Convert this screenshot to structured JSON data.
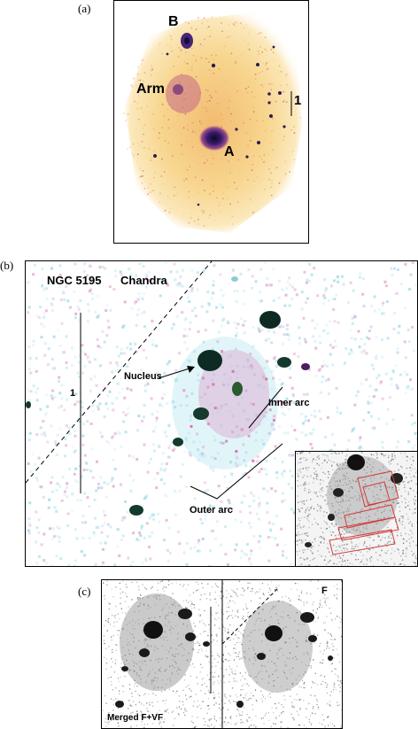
{
  "panel_a": {
    "label": "(a)",
    "annotations": {
      "b": "B",
      "arm": "Arm",
      "a": "A",
      "scale": "1"
    }
  },
  "panel_b": {
    "label": "(b)",
    "title_object": "NGC 5195",
    "title_instrument": "Chandra",
    "annotations": {
      "nucleus": "Nucleus",
      "inner_arc": "Inner arc",
      "outer_arc": "Outer arc",
      "scale": "1"
    }
  },
  "panel_c": {
    "label": "(c)",
    "left_caption": "Merged F+VF",
    "right_caption": "F"
  },
  "colors": {
    "halo": "#f7d48a",
    "core": "#3b1a6b",
    "cyan": "#a9e3ee",
    "magenta": "#e04d9a",
    "arc_box": "#d23b3b"
  }
}
